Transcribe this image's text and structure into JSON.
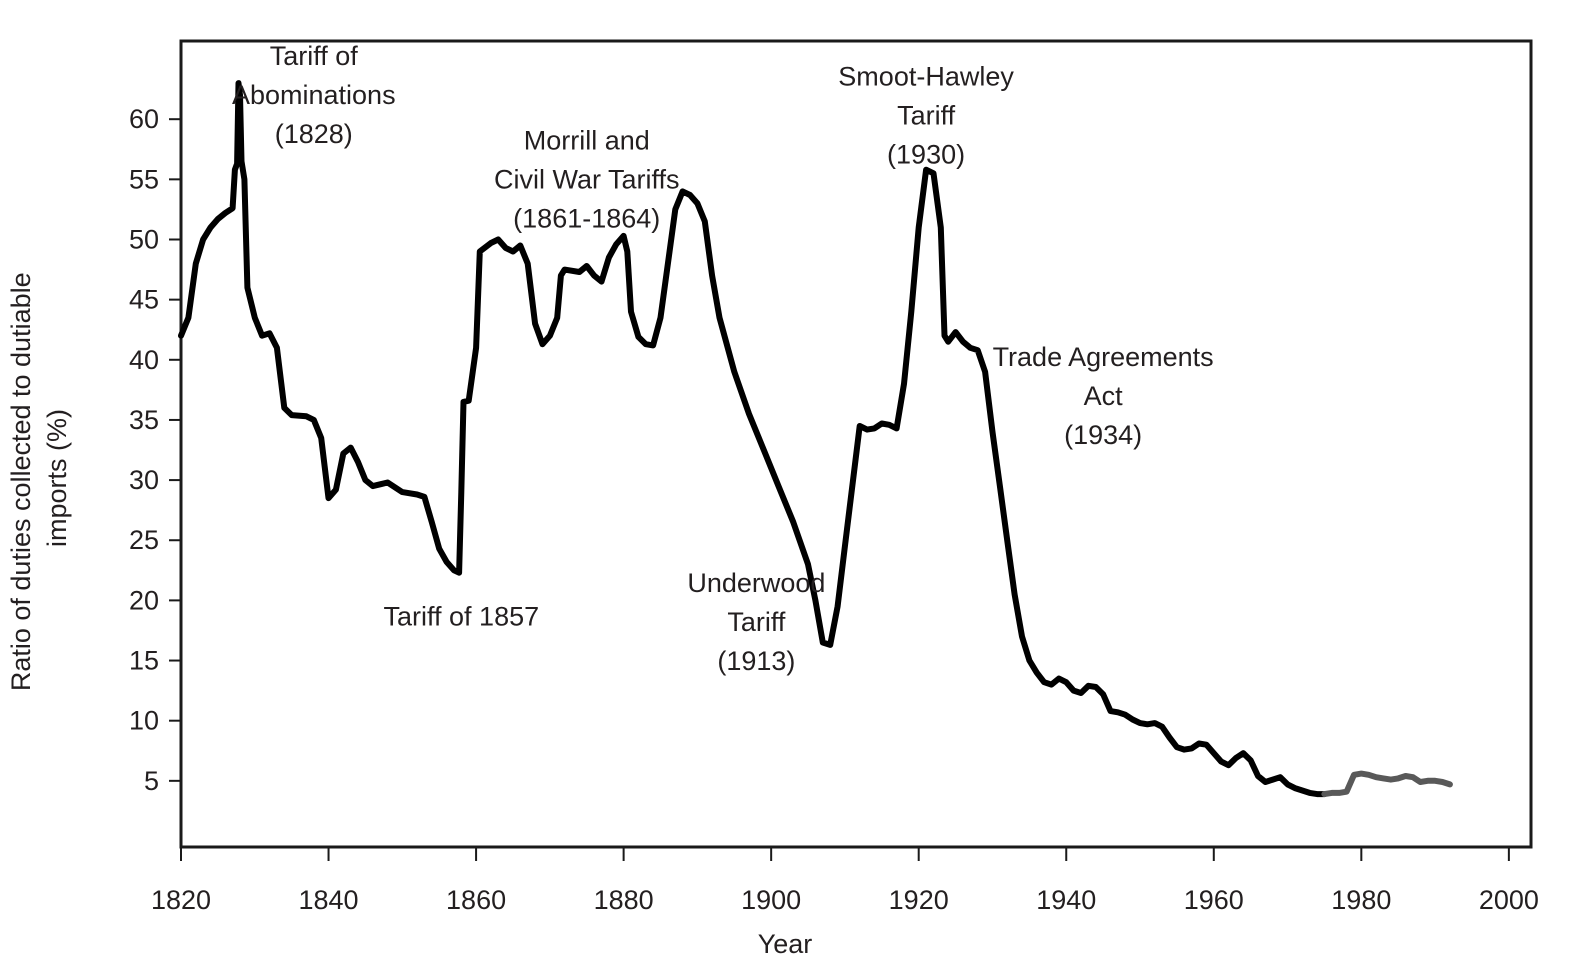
{
  "chart_data": {
    "type": "line",
    "xlabel": "Year",
    "ylabel": [
      "Ratio of duties collected to dutiable",
      "imports (%)"
    ],
    "xlim": [
      1820,
      2003
    ],
    "ylim": [
      -0.5,
      66.5
    ],
    "x_ticks": [
      1820,
      1840,
      1860,
      1880,
      1900,
      1920,
      1940,
      1960,
      1980,
      2000
    ],
    "y_ticks": [
      5,
      10,
      15,
      20,
      25,
      30,
      35,
      40,
      45,
      50,
      55,
      60
    ],
    "grid": false,
    "legend": "none",
    "colors": {
      "main": "#000000",
      "recent": "#595959",
      "text": "#231f20",
      "frame": "#1a1a1a"
    },
    "series": [
      {
        "color": "#000000",
        "points": [
          [
            1820,
            42
          ],
          [
            1821,
            43.5
          ],
          [
            1822,
            48
          ],
          [
            1823,
            50
          ],
          [
            1824,
            51
          ],
          [
            1825,
            51.7
          ],
          [
            1826,
            52.2
          ],
          [
            1827,
            52.6
          ],
          [
            1827.3,
            55.8
          ],
          [
            1827.6,
            56.3
          ],
          [
            1827.8,
            63
          ],
          [
            1828,
            62
          ],
          [
            1828.2,
            56.5
          ],
          [
            1828.6,
            55
          ],
          [
            1829,
            46
          ],
          [
            1830,
            43.5
          ],
          [
            1831,
            42
          ],
          [
            1832,
            42.2
          ],
          [
            1833,
            41
          ],
          [
            1834,
            36
          ],
          [
            1835,
            35.4
          ],
          [
            1837,
            35.3
          ],
          [
            1838,
            35
          ],
          [
            1839,
            33.5
          ],
          [
            1840,
            28.5
          ],
          [
            1841,
            29.2
          ],
          [
            1842,
            32.2
          ],
          [
            1843,
            32.7
          ],
          [
            1844,
            31.5
          ],
          [
            1845,
            30
          ],
          [
            1846,
            29.5
          ],
          [
            1848,
            29.8
          ],
          [
            1850,
            29
          ],
          [
            1852,
            28.8
          ],
          [
            1853,
            28.6
          ],
          [
            1854,
            26.5
          ],
          [
            1855,
            24.3
          ],
          [
            1856,
            23.2
          ],
          [
            1857,
            22.5
          ],
          [
            1857.7,
            22.3
          ],
          [
            1858,
            29
          ],
          [
            1858.3,
            36.5
          ],
          [
            1859,
            36.6
          ],
          [
            1860,
            41
          ],
          [
            1860.5,
            49
          ],
          [
            1862,
            49.7
          ],
          [
            1863,
            50
          ],
          [
            1864,
            49.3
          ],
          [
            1865,
            49
          ],
          [
            1866,
            49.5
          ],
          [
            1867,
            48
          ],
          [
            1868,
            43
          ],
          [
            1869,
            41.3
          ],
          [
            1870,
            42
          ],
          [
            1871,
            43.5
          ],
          [
            1871.5,
            47
          ],
          [
            1872,
            47.5
          ],
          [
            1874,
            47.3
          ],
          [
            1875,
            47.8
          ],
          [
            1876,
            47
          ],
          [
            1877,
            46.5
          ],
          [
            1878,
            48.5
          ],
          [
            1879,
            49.6
          ],
          [
            1880,
            50.3
          ],
          [
            1880.5,
            49
          ],
          [
            1881,
            44
          ],
          [
            1882,
            41.9
          ],
          [
            1883,
            41.3
          ],
          [
            1884,
            41.2
          ],
          [
            1885,
            43.5
          ],
          [
            1886,
            48
          ],
          [
            1887,
            52.5
          ],
          [
            1888,
            54
          ],
          [
            1889,
            53.7
          ],
          [
            1890,
            53
          ],
          [
            1891,
            51.5
          ],
          [
            1892,
            47
          ],
          [
            1893,
            43.5
          ],
          [
            1895,
            39
          ],
          [
            1897,
            35.5
          ],
          [
            1899,
            32.5
          ],
          [
            1901,
            29.5
          ],
          [
            1903,
            26.5
          ],
          [
            1905,
            23
          ],
          [
            1906,
            20
          ],
          [
            1907,
            16.5
          ],
          [
            1908,
            16.3
          ],
          [
            1909,
            19.5
          ],
          [
            1910,
            24.5
          ],
          [
            1911,
            29.5
          ],
          [
            1912,
            34.5
          ],
          [
            1913,
            34.2
          ],
          [
            1914,
            34.3
          ],
          [
            1915,
            34.7
          ],
          [
            1916,
            34.6
          ],
          [
            1917,
            34.3
          ],
          [
            1918,
            38
          ],
          [
            1919,
            44
          ],
          [
            1920,
            51
          ],
          [
            1921,
            55.8
          ],
          [
            1922,
            55.5
          ],
          [
            1923,
            51
          ],
          [
            1923.5,
            42
          ],
          [
            1924,
            41.5
          ],
          [
            1925,
            42.3
          ],
          [
            1926,
            41.5
          ],
          [
            1927,
            41
          ],
          [
            1928,
            40.8
          ],
          [
            1929,
            39
          ],
          [
            1930,
            34
          ],
          [
            1931,
            29.5
          ],
          [
            1932,
            25
          ],
          [
            1933,
            20.5
          ],
          [
            1934,
            17
          ],
          [
            1935,
            15
          ],
          [
            1936,
            14
          ],
          [
            1937,
            13.2
          ],
          [
            1938,
            13
          ],
          [
            1939,
            13.5
          ],
          [
            1940,
            13.2
          ],
          [
            1941,
            12.5
          ],
          [
            1942,
            12.3
          ],
          [
            1943,
            12.9
          ],
          [
            1944,
            12.8
          ],
          [
            1945,
            12.2
          ],
          [
            1946,
            10.8
          ],
          [
            1947,
            10.7
          ],
          [
            1948,
            10.5
          ],
          [
            1949,
            10.1
          ],
          [
            1950,
            9.8
          ],
          [
            1951,
            9.7
          ],
          [
            1952,
            9.8
          ],
          [
            1953,
            9.5
          ],
          [
            1954,
            8.6
          ],
          [
            1955,
            7.8
          ],
          [
            1956,
            7.6
          ],
          [
            1957,
            7.7
          ],
          [
            1958,
            8.1
          ],
          [
            1959,
            8
          ],
          [
            1960,
            7.3
          ],
          [
            1961,
            6.6
          ],
          [
            1962,
            6.3
          ],
          [
            1963,
            6.9
          ],
          [
            1964,
            7.3
          ],
          [
            1965,
            6.7
          ],
          [
            1966,
            5.4
          ],
          [
            1967,
            4.9
          ],
          [
            1968,
            5.1
          ],
          [
            1969,
            5.3
          ],
          [
            1970,
            4.7
          ],
          [
            1971,
            4.4
          ],
          [
            1972,
            4.2
          ],
          [
            1973,
            4
          ],
          [
            1974,
            3.9
          ],
          [
            1975,
            3.9
          ]
        ]
      },
      {
        "color": "#595959",
        "points": [
          [
            1975,
            3.9
          ],
          [
            1976,
            4
          ],
          [
            1977,
            4
          ],
          [
            1978,
            4.1
          ],
          [
            1979,
            5.5
          ],
          [
            1980,
            5.6
          ],
          [
            1981,
            5.5
          ],
          [
            1982,
            5.3
          ],
          [
            1983,
            5.2
          ],
          [
            1984,
            5.1
          ],
          [
            1985,
            5.2
          ],
          [
            1986,
            5.4
          ],
          [
            1987,
            5.3
          ],
          [
            1988,
            4.9
          ],
          [
            1989,
            5
          ],
          [
            1990,
            5
          ],
          [
            1991,
            4.9
          ],
          [
            1992,
            4.7
          ]
        ]
      }
    ],
    "annotations": [
      {
        "lines": [
          "Tariff of",
          "Abominations",
          "(1828)"
        ],
        "x": 1838,
        "y": 64.5
      },
      {
        "lines": [
          "Morrill and",
          "Civil War Tariffs",
          "(1861-1864)"
        ],
        "x": 1875,
        "y": 57.5
      },
      {
        "lines": [
          "Tariff of 1857"
        ],
        "x": 1858,
        "y": 17.9
      },
      {
        "lines": [
          "Underwood",
          "Tariff",
          "(1913)"
        ],
        "x": 1898,
        "y": 20.7
      },
      {
        "lines": [
          "Smoot-Hawley",
          "Tariff",
          "(1930)"
        ],
        "x": 1921,
        "y": 62.8
      },
      {
        "lines": [
          "Trade Agreements",
          "Act",
          "(1934)"
        ],
        "x": 1945,
        "y": 39.5
      }
    ]
  }
}
